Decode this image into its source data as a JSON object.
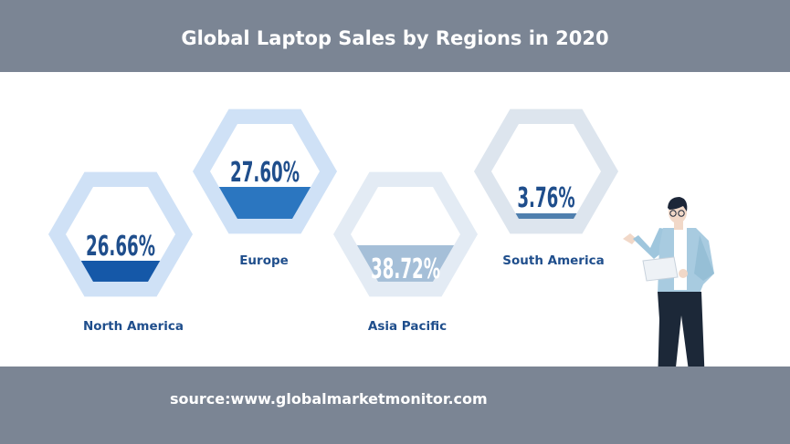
{
  "title": "Global Laptop Sales by Regions in 2020",
  "source": "source:www.globalmarketmonitor.com",
  "colors": {
    "band": "#7b8594",
    "label": "#1f4e8c"
  },
  "chart_data": {
    "type": "pie",
    "title": "Global Laptop Sales by Regions in 2020",
    "categories": [
      "North America",
      "Europe",
      "Asia Pacific",
      "South America"
    ],
    "values": [
      26.66,
      27.6,
      38.72,
      3.76
    ],
    "value_labels": [
      "26.66%",
      "27.60%",
      "38.72%",
      "3.76%"
    ],
    "colors": [
      "#1558a8",
      "#2b76c0",
      "#a5bfd8",
      "#4f7fae"
    ],
    "ring_colors": [
      "#cfe1f6",
      "#cfe1f6",
      "#e3ebf4",
      "#dde5ee"
    ]
  }
}
